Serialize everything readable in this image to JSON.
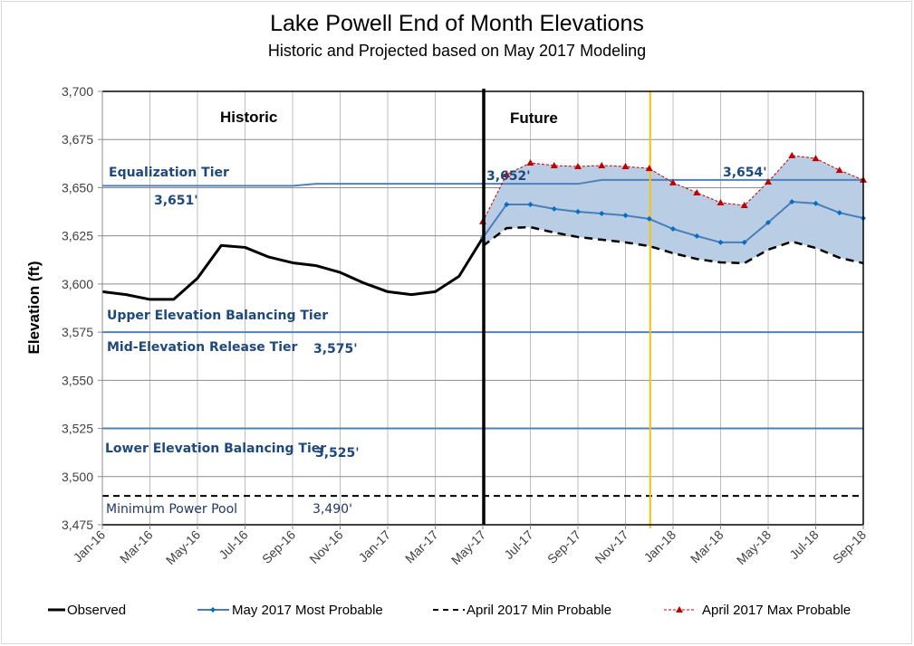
{
  "chart_data": {
    "type": "line",
    "title": "Lake Powell End of Month Elevations",
    "subtitle": "Historic and Projected based on May 2017 Modeling",
    "xlabel": "",
    "ylabel": "Elevation (ft)",
    "ylim": [
      3475,
      3700
    ],
    "yticks": [
      3475,
      3500,
      3525,
      3550,
      3575,
      3600,
      3625,
      3650,
      3675,
      3700
    ],
    "ytick_labels": [
      "3,475",
      "3,500",
      "3,525",
      "3,550",
      "3,575",
      "3,600",
      "3,625",
      "3,650",
      "3,675",
      "3,700"
    ],
    "months": [
      "Jan-16",
      "Feb-16",
      "Mar-16",
      "Apr-16",
      "May-16",
      "Jun-16",
      "Jul-16",
      "Aug-16",
      "Sep-16",
      "Oct-16",
      "Nov-16",
      "Dec-16",
      "Jan-17",
      "Feb-17",
      "Mar-17",
      "Apr-17",
      "May-17",
      "Jun-17",
      "Jul-17",
      "Aug-17",
      "Sep-17",
      "Oct-17",
      "Nov-17",
      "Dec-17",
      "Jan-18",
      "Feb-18",
      "Mar-18",
      "Apr-18",
      "May-18",
      "Jun-18",
      "Jul-18",
      "Aug-18",
      "Sep-18"
    ],
    "xtick_labels": [
      "Jan-16",
      "Mar-16",
      "May-16",
      "Jul-16",
      "Sep-16",
      "Nov-16",
      "Jan-17",
      "Mar-17",
      "May-17",
      "Jul-17",
      "Sep-17",
      "Nov-17",
      "Jan-18",
      "Mar-18",
      "May-18",
      "Jul-18",
      "Sep-18"
    ],
    "grid": true,
    "legend_position": "bottom",
    "section_labels": {
      "historic": "Historic",
      "future": "Future"
    },
    "divider_month": "May-17",
    "current_month_marker": "Dec-17",
    "series": [
      {
        "name": "Observed",
        "start_month": "Jan-16",
        "color": "#000000",
        "values": [
          3596,
          3594.5,
          3592,
          3592,
          3603,
          3620,
          3619,
          3614,
          3611,
          3609.5,
          3606,
          3600.5,
          3596,
          3594.5,
          3596,
          3604,
          3624
        ]
      },
      {
        "name": "May 2017 Most Probable",
        "start_month": "May-17",
        "color": "#4a7ebb",
        "values": [
          3624,
          3641.3,
          3641.3,
          3639,
          3637.5,
          3636.6,
          3635.6,
          3633.8,
          3628.6,
          3624.9,
          3621.6,
          3621.6,
          3631.9,
          3642.7,
          3641.8,
          3637,
          3634.2
        ]
      },
      {
        "name": "April 2017 Min Probable",
        "start_month": "May-17",
        "color": "#000000",
        "values": [
          3619.7,
          3629,
          3629.5,
          3626.7,
          3624.4,
          3623,
          3621.6,
          3619.7,
          3616,
          3613,
          3611.2,
          3610.8,
          3617.8,
          3622,
          3618.7,
          3613.6,
          3610.8
        ]
      },
      {
        "name": "April 2017 Max Probable",
        "start_month": "May-17",
        "color": "#c00000",
        "values": [
          3632.4,
          3656.8,
          3662.9,
          3661.5,
          3661,
          3661.5,
          3661,
          3660,
          3652.6,
          3647.4,
          3642.2,
          3640.8,
          3653,
          3666.7,
          3665.2,
          3659.1,
          3654
        ]
      }
    ],
    "equalization_line": {
      "color": "#4f81bd",
      "values": [
        3651,
        3651,
        3651,
        3651,
        3651,
        3651,
        3651,
        3651,
        3651,
        3652,
        3652,
        3652,
        3652,
        3652,
        3652,
        3652,
        3652,
        3652,
        3652,
        3652,
        3652,
        3654,
        3654,
        3654,
        3654,
        3654,
        3654,
        3654,
        3654,
        3654,
        3654,
        3654,
        3654
      ]
    },
    "tiers": [
      {
        "name": "Equalization Tier",
        "value_label": "3,651'",
        "value_label_2": "3,652'",
        "value_label_3": "3,654'"
      },
      {
        "name": "Upper Elevation Balancing Tier"
      },
      {
        "name": "Mid-Elevation Release Tier",
        "elevation": 3575,
        "value_label": "3,575'"
      },
      {
        "name": "Lower Elevation Balancing Tier",
        "elevation": 3525,
        "value_label": "3,525'"
      },
      {
        "name": "Minimum Power Pool",
        "elevation": 3490,
        "value_label": "3,490'"
      }
    ],
    "band_fill_color": "#b9cde5",
    "marker_color_current": "#ffc000"
  }
}
